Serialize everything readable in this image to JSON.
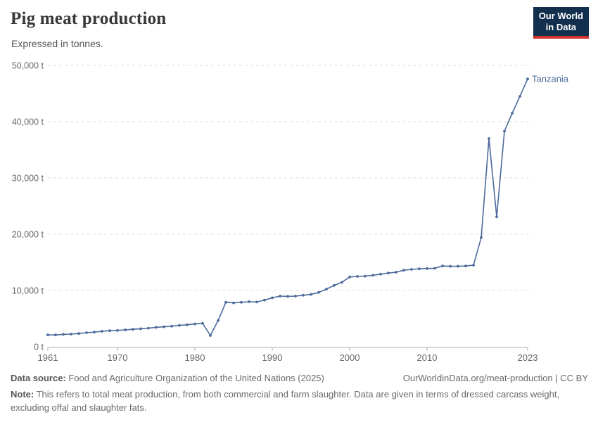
{
  "header": {
    "title": "Pig meat production",
    "subtitle": "Expressed in tonnes."
  },
  "logo": {
    "line1": "Our World",
    "line2": "in Data"
  },
  "chart_data": {
    "type": "line",
    "title": "Pig meat production",
    "ylabel": "tonnes",
    "unit": "t",
    "grid": "horizontal-dashed",
    "legend": "end-of-line-label",
    "ylim": [
      0,
      50000
    ],
    "xlim": [
      1961,
      2023
    ],
    "xticks": [
      1961,
      1970,
      1980,
      1990,
      2000,
      2010,
      2023
    ],
    "yticks": [
      {
        "value": 0,
        "label": "0 t"
      },
      {
        "value": 10000,
        "label": "10,000 t"
      },
      {
        "value": 20000,
        "label": "20,000 t"
      },
      {
        "value": 30000,
        "label": "30,000 t"
      },
      {
        "value": 40000,
        "label": "40,000 t"
      },
      {
        "value": 50000,
        "label": "50,000 t"
      }
    ],
    "x": [
      1961,
      1962,
      1963,
      1964,
      1965,
      1966,
      1967,
      1968,
      1969,
      1970,
      1971,
      1972,
      1973,
      1974,
      1975,
      1976,
      1977,
      1978,
      1979,
      1980,
      1981,
      1982,
      1983,
      1984,
      1985,
      1986,
      1987,
      1988,
      1989,
      1990,
      1991,
      1992,
      1993,
      1994,
      1995,
      1996,
      1997,
      1998,
      1999,
      2000,
      2001,
      2002,
      2003,
      2004,
      2005,
      2006,
      2007,
      2008,
      2009,
      2010,
      2011,
      2012,
      2013,
      2014,
      2015,
      2016,
      2017,
      2018,
      2019,
      2020,
      2021,
      2022,
      2023
    ],
    "series": [
      {
        "name": "Tanzania",
        "values": [
          2100,
          2100,
          2200,
          2250,
          2350,
          2500,
          2600,
          2750,
          2850,
          2900,
          3000,
          3100,
          3200,
          3300,
          3450,
          3550,
          3650,
          3800,
          3900,
          4050,
          4150,
          2000,
          4650,
          7900,
          7800,
          7900,
          8000,
          7950,
          8300,
          8700,
          9000,
          8950,
          9000,
          9150,
          9300,
          9650,
          10250,
          10900,
          11450,
          12400,
          12500,
          12550,
          12700,
          12900,
          13100,
          13250,
          13600,
          13750,
          13850,
          13900,
          13950,
          14350,
          14300,
          14300,
          14350,
          14500,
          19400,
          37000,
          23100,
          38300,
          41500,
          44500,
          47600
        ]
      }
    ]
  },
  "footer": {
    "datasource_label": "Data source:",
    "datasource": "Food and Agriculture Organization of the United Nations (2025)",
    "link": "OurWorldinData.org/meat-production | CC BY",
    "note_label": "Note:",
    "note": "This refers to total meat production, from both commercial and farm slaughter. Data are given in terms of dressed carcass weight, excluding offal and slaughter fats."
  },
  "colors": {
    "line": "#4C6A9C",
    "grid": "#dcdcdc",
    "axis": "#adadad",
    "tick_text": "#666666",
    "title": "#383838",
    "logo_bg": "#12304E",
    "logo_red": "#D3332B"
  }
}
